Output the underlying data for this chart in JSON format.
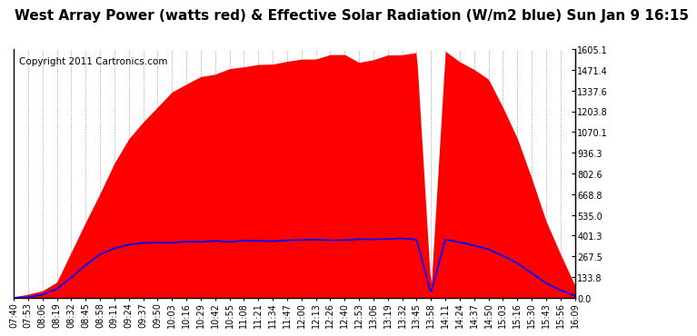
{
  "title": "West Array Power (watts red) & Effective Solar Radiation (W/m2 blue) Sun Jan 9 16:15",
  "copyright": "Copyright 2011 Cartronics.com",
  "background_color": "#ffffff",
  "plot_bg_color": "#ffffff",
  "red_fill_color": "#ff0000",
  "blue_line_color": "#0000ff",
  "grid_color": "#888888",
  "ymin": 0.0,
  "ymax": 1605.1,
  "yticks": [
    0.0,
    133.8,
    267.5,
    401.3,
    535.0,
    668.8,
    802.6,
    936.3,
    1070.1,
    1203.8,
    1337.6,
    1471.4,
    1605.1
  ],
  "xtick_labels": [
    "07:40",
    "07:53",
    "08:06",
    "08:19",
    "08:32",
    "08:45",
    "08:58",
    "09:11",
    "09:24",
    "09:37",
    "09:50",
    "10:03",
    "10:16",
    "10:29",
    "10:42",
    "10:55",
    "11:08",
    "11:21",
    "11:34",
    "11:47",
    "12:00",
    "12:13",
    "12:26",
    "12:40",
    "12:53",
    "13:06",
    "13:19",
    "13:32",
    "13:45",
    "13:58",
    "14:11",
    "14:24",
    "14:37",
    "14:50",
    "15:03",
    "15:16",
    "15:30",
    "15:43",
    "15:56",
    "16:09"
  ],
  "power_curve": [
    0,
    10,
    40,
    120,
    280,
    480,
    680,
    860,
    1020,
    1130,
    1230,
    1320,
    1390,
    1430,
    1450,
    1470,
    1490,
    1510,
    1520,
    1530,
    1540,
    1545,
    1550,
    1555,
    1560,
    1565,
    1570,
    1575,
    1580,
    50,
    1560,
    1540,
    1480,
    1380,
    1220,
    1020,
    780,
    520,
    280,
    80
  ],
  "solar_curve": [
    0,
    5,
    20,
    60,
    130,
    210,
    280,
    320,
    340,
    350,
    355,
    358,
    360,
    362,
    363,
    364,
    365,
    368,
    370,
    372,
    373,
    374,
    375,
    376,
    377,
    378,
    379,
    380,
    382,
    30,
    370,
    360,
    340,
    310,
    270,
    220,
    160,
    100,
    50,
    15
  ],
  "title_fontsize": 11,
  "copyright_fontsize": 7.5,
  "tick_fontsize": 7
}
